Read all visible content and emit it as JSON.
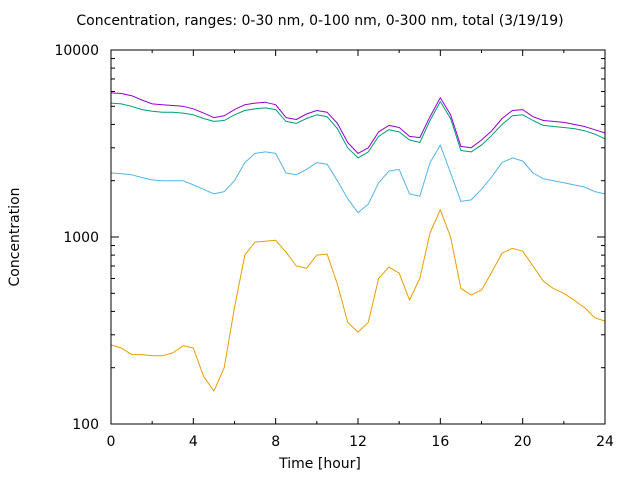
{
  "chart_data": {
    "type": "line",
    "title": "Concentration, ranges: 0-30 nm, 0-100 nm, 0-300 nm, total (3/19/19)",
    "xlabel": "Time [hour]",
    "ylabel": "Concentration",
    "xlim": [
      0,
      24
    ],
    "ylim": [
      100,
      10000
    ],
    "yscale": "log",
    "grid": false,
    "x_ticks": [
      "0",
      "4",
      "8",
      "12",
      "16",
      "20",
      "24"
    ],
    "y_ticks": [
      "100",
      "1000",
      "10000"
    ],
    "series": [
      {
        "color": "#e69f00",
        "x": [
          0,
          0.5,
          1,
          1.5,
          2,
          2.5,
          3,
          3.5,
          4,
          4.5,
          5,
          5.5,
          6,
          6.5,
          7,
          7.5,
          8,
          8.5,
          9,
          9.5,
          10,
          10.5,
          11,
          11.5,
          12,
          12.5,
          13,
          13.5,
          14,
          14.5,
          15,
          15.5,
          16,
          16.5,
          17,
          17.5,
          18,
          18.5,
          19,
          19.5,
          20,
          20.5,
          21,
          21.5,
          22,
          22.5,
          23,
          23.5,
          24
        ],
        "values": [
          265,
          255,
          235,
          235,
          232,
          232,
          240,
          262,
          255,
          180,
          150,
          200,
          420,
          800,
          940,
          950,
          960,
          830,
          700,
          680,
          800,
          810,
          560,
          350,
          310,
          350,
          600,
          690,
          640,
          460,
          600,
          1050,
          1400,
          1000,
          530,
          490,
          520,
          650,
          820,
          870,
          840,
          700,
          580,
          530,
          500,
          460,
          420,
          370,
          355
        ]
      },
      {
        "color": "#56b4e9",
        "x": [
          0,
          0.5,
          1,
          1.5,
          2,
          2.5,
          3,
          3.5,
          4,
          4.5,
          5,
          5.5,
          6,
          6.5,
          7,
          7.5,
          8,
          8.5,
          9,
          9.5,
          10,
          10.5,
          11,
          11.5,
          12,
          12.5,
          13,
          13.5,
          14,
          14.5,
          15,
          15.5,
          16,
          16.5,
          17,
          17.5,
          18,
          18.5,
          19,
          19.5,
          20,
          20.5,
          21,
          21.5,
          22,
          22.5,
          23,
          23.5,
          24
        ],
        "values": [
          2200,
          2180,
          2150,
          2080,
          2020,
          2000,
          2000,
          2000,
          1900,
          1800,
          1700,
          1750,
          2000,
          2500,
          2800,
          2850,
          2800,
          2200,
          2150,
          2300,
          2500,
          2450,
          2000,
          1600,
          1350,
          1500,
          1950,
          2250,
          2300,
          1700,
          1650,
          2500,
          3100,
          2200,
          1550,
          1580,
          1800,
          2100,
          2500,
          2650,
          2550,
          2200,
          2050,
          2000,
          1950,
          1900,
          1850,
          1750,
          1700
        ]
      },
      {
        "color": "#009e73",
        "x": [
          0,
          0.5,
          1,
          1.5,
          2,
          2.5,
          3,
          3.5,
          4,
          4.5,
          5,
          5.5,
          6,
          6.5,
          7,
          7.5,
          8,
          8.5,
          9,
          9.5,
          10,
          10.5,
          11,
          11.5,
          12,
          12.5,
          13,
          13.5,
          14,
          14.5,
          15,
          15.5,
          16,
          16.5,
          17,
          17.5,
          18,
          18.5,
          19,
          19.5,
          20,
          20.5,
          21,
          21.5,
          22,
          22.5,
          23,
          23.5,
          24
        ],
        "values": [
          5200,
          5150,
          5000,
          4800,
          4700,
          4650,
          4650,
          4600,
          4500,
          4300,
          4150,
          4200,
          4500,
          4750,
          4850,
          4900,
          4800,
          4150,
          4050,
          4300,
          4500,
          4400,
          3800,
          3000,
          2650,
          2850,
          3450,
          3750,
          3650,
          3300,
          3200,
          4200,
          5300,
          4300,
          2900,
          2850,
          3100,
          3500,
          4000,
          4450,
          4500,
          4200,
          3950,
          3900,
          3850,
          3800,
          3700,
          3550,
          3350
        ]
      },
      {
        "color": "#9400d3",
        "x": [
          0,
          0.5,
          1,
          1.5,
          2,
          2.5,
          3,
          3.5,
          4,
          4.5,
          5,
          5.5,
          6,
          6.5,
          7,
          7.5,
          8,
          8.5,
          9,
          9.5,
          10,
          10.5,
          11,
          11.5,
          12,
          12.5,
          13,
          13.5,
          14,
          14.5,
          15,
          15.5,
          16,
          16.5,
          17,
          17.5,
          18,
          18.5,
          19,
          19.5,
          20,
          20.5,
          21,
          21.5,
          22,
          22.5,
          23,
          23.5,
          24
        ],
        "values": [
          5900,
          5850,
          5700,
          5400,
          5150,
          5100,
          5050,
          5000,
          4850,
          4600,
          4350,
          4450,
          4800,
          5100,
          5200,
          5250,
          5100,
          4350,
          4250,
          4550,
          4750,
          4650,
          4050,
          3200,
          2800,
          3000,
          3650,
          3950,
          3850,
          3450,
          3400,
          4400,
          5550,
          4500,
          3050,
          3000,
          3300,
          3700,
          4300,
          4750,
          4800,
          4400,
          4200,
          4150,
          4100,
          4000,
          3900,
          3750,
          3600
        ]
      }
    ]
  }
}
